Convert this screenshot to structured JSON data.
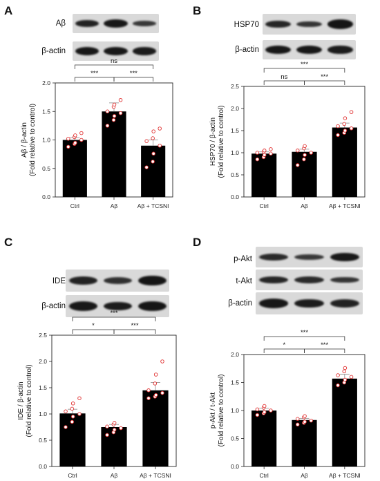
{
  "panels": [
    {
      "letter": "A",
      "blots": [
        {
          "label": "Aβ",
          "intensities": [
            0.85,
            0.95,
            0.6
          ]
        },
        {
          "label": "β-actin",
          "intensities": [
            0.95,
            0.95,
            0.9
          ]
        }
      ],
      "chart_data": {
        "type": "bar",
        "categories": [
          "Ctrl",
          "Aβ",
          "Aβ + TCSNI"
        ],
        "values": [
          1.0,
          1.5,
          0.9
        ],
        "errors": [
          0.04,
          0.15,
          0.1
        ],
        "points": [
          [
            0.88,
            0.93,
            0.95,
            1.0,
            1.02,
            1.05,
            1.08,
            1.12
          ],
          [
            1.25,
            1.35,
            1.42,
            1.47,
            1.5,
            1.58,
            1.62,
            1.7
          ],
          [
            0.52,
            0.62,
            0.76,
            0.9,
            0.98,
            1.03,
            1.15,
            1.2
          ]
        ],
        "ylabel": "Aβ / β-actin",
        "ylabel2": "(Fold relative to control)",
        "ylim": [
          0,
          2.0
        ],
        "yticks": [
          "0.0",
          "0.5",
          "1.0",
          "1.5",
          "2.0"
        ],
        "significance": [
          {
            "from": 0,
            "to": 1,
            "label": "***",
            "level": 1
          },
          {
            "from": 1,
            "to": 2,
            "label": "***",
            "level": 1
          },
          {
            "from": 0,
            "to": 2,
            "label": "ns",
            "level": 2
          }
        ]
      }
    },
    {
      "letter": "B",
      "blots": [
        {
          "label": "HSP70",
          "intensities": [
            0.8,
            0.65,
            1.0
          ]
        },
        {
          "label": "β-actin",
          "intensities": [
            0.95,
            0.95,
            0.9
          ]
        }
      ],
      "chart_data": {
        "type": "bar",
        "categories": [
          "Ctrl",
          "Aβ",
          "Aβ + TCSNI"
        ],
        "values": [
          0.98,
          1.02,
          1.57
        ],
        "errors": [
          0.04,
          0.06,
          0.1
        ],
        "points": [
          [
            0.85,
            0.9,
            0.95,
            0.98,
            1.0,
            1.02,
            1.05,
            1.08
          ],
          [
            0.72,
            0.85,
            0.95,
            1.0,
            1.05,
            1.1,
            1.15
          ],
          [
            1.4,
            1.45,
            1.5,
            1.55,
            1.6,
            1.65,
            1.78,
            1.92
          ]
        ],
        "ylabel": "HSP70 / β-actin",
        "ylabel2": "(Fold relative to control)",
        "ylim": [
          0,
          2.5
        ],
        "yticks": [
          "0.0",
          "0.5",
          "1.0",
          "1.5",
          "2.0",
          "2.5"
        ],
        "significance": [
          {
            "from": 0,
            "to": 1,
            "label": "ns",
            "level": 1
          },
          {
            "from": 1,
            "to": 2,
            "label": "***",
            "level": 1
          },
          {
            "from": 0,
            "to": 2,
            "label": "***",
            "level": 2
          }
        ]
      }
    },
    {
      "letter": "C",
      "blots": [
        {
          "label": "IDE",
          "intensities": [
            0.85,
            0.7,
            1.0
          ]
        },
        {
          "label": "β-actin",
          "intensities": [
            0.95,
            0.9,
            1.0
          ]
        }
      ],
      "chart_data": {
        "type": "bar",
        "categories": [
          "Ctrl",
          "Aβ",
          "Aβ + TCSNI"
        ],
        "values": [
          1.01,
          0.75,
          1.45
        ],
        "errors": [
          0.08,
          0.05,
          0.15
        ],
        "points": [
          [
            0.75,
            0.85,
            0.95,
            1.0,
            1.05,
            1.1,
            1.2,
            1.3
          ],
          [
            0.6,
            0.65,
            0.7,
            0.73,
            0.76,
            0.8,
            0.83
          ],
          [
            1.3,
            1.33,
            1.36,
            1.4,
            1.45,
            1.58,
            1.75,
            2.0
          ]
        ],
        "ylabel": "IDE / β-actin",
        "ylabel2": "(Fold relative to control)",
        "ylim": [
          0,
          2.5
        ],
        "yticks": [
          "0.0",
          "0.5",
          "1.0",
          "1.5",
          "2.0",
          "2.5"
        ],
        "significance": [
          {
            "from": 0,
            "to": 1,
            "label": "*",
            "level": 1
          },
          {
            "from": 1,
            "to": 2,
            "label": "***",
            "level": 1
          },
          {
            "from": 0,
            "to": 2,
            "label": "***",
            "level": 2
          }
        ]
      }
    },
    {
      "letter": "D",
      "blots": [
        {
          "label": "p-Akt",
          "intensities": [
            0.75,
            0.6,
            0.95
          ]
        },
        {
          "label": "t-Akt",
          "intensities": [
            0.8,
            0.75,
            0.65
          ]
        },
        {
          "label": "β-actin",
          "intensities": [
            0.95,
            0.9,
            0.85
          ]
        }
      ],
      "chart_data": {
        "type": "bar",
        "categories": [
          "Ctrl",
          "Aβ",
          "Aβ + TCSNI"
        ],
        "values": [
          1.0,
          0.83,
          1.57
        ],
        "errors": [
          0.04,
          0.03,
          0.08
        ],
        "points": [
          [
            0.92,
            0.95,
            0.97,
            1.0,
            1.02,
            1.05,
            1.08
          ],
          [
            0.75,
            0.78,
            0.8,
            0.82,
            0.85,
            0.88,
            0.9
          ],
          [
            1.45,
            1.5,
            1.55,
            1.6,
            1.63,
            1.7,
            1.76
          ]
        ],
        "ylabel": "p-Akt / t-Akt",
        "ylabel2": "(Fold relative to control)",
        "ylim": [
          0,
          2.0
        ],
        "yticks": [
          "0.0",
          "0.5",
          "1.0",
          "1.5",
          "2.0"
        ],
        "significance": [
          {
            "from": 0,
            "to": 1,
            "label": "*",
            "level": 1
          },
          {
            "from": 1,
            "to": 2,
            "label": "***",
            "level": 1
          },
          {
            "from": 0,
            "to": 2,
            "label": "***",
            "level": 2
          }
        ]
      }
    }
  ]
}
